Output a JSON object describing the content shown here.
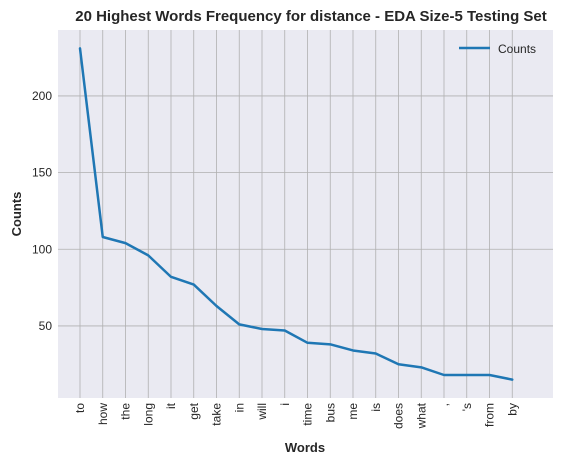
{
  "chart_data": {
    "type": "line",
    "title": "20 Highest Words Frequency for distance - EDA Size-5 Testing Set",
    "xlabel": "Words",
    "ylabel": "Counts",
    "categories": [
      "to",
      "how",
      "the",
      "long",
      "it",
      "get",
      "take",
      "in",
      "will",
      "i",
      "time",
      "bus",
      "me",
      "is",
      "does",
      "what",
      ",",
      "'s",
      "from",
      "by"
    ],
    "series": [
      {
        "name": "Counts",
        "values": [
          231,
          108,
          104,
          96,
          82,
          77,
          63,
          51,
          48,
          47,
          39,
          38,
          34,
          32,
          25,
          23,
          18,
          18,
          18,
          15
        ],
        "color": "#1f77b4"
      }
    ],
    "ylim": [
      3,
      243
    ],
    "yticks": [
      50,
      100,
      150,
      200
    ],
    "grid": true,
    "legend": "top-right",
    "colors": {
      "background": "#eaeaf2",
      "grid": "#b0b0b0",
      "line": "#1f77b4"
    }
  }
}
